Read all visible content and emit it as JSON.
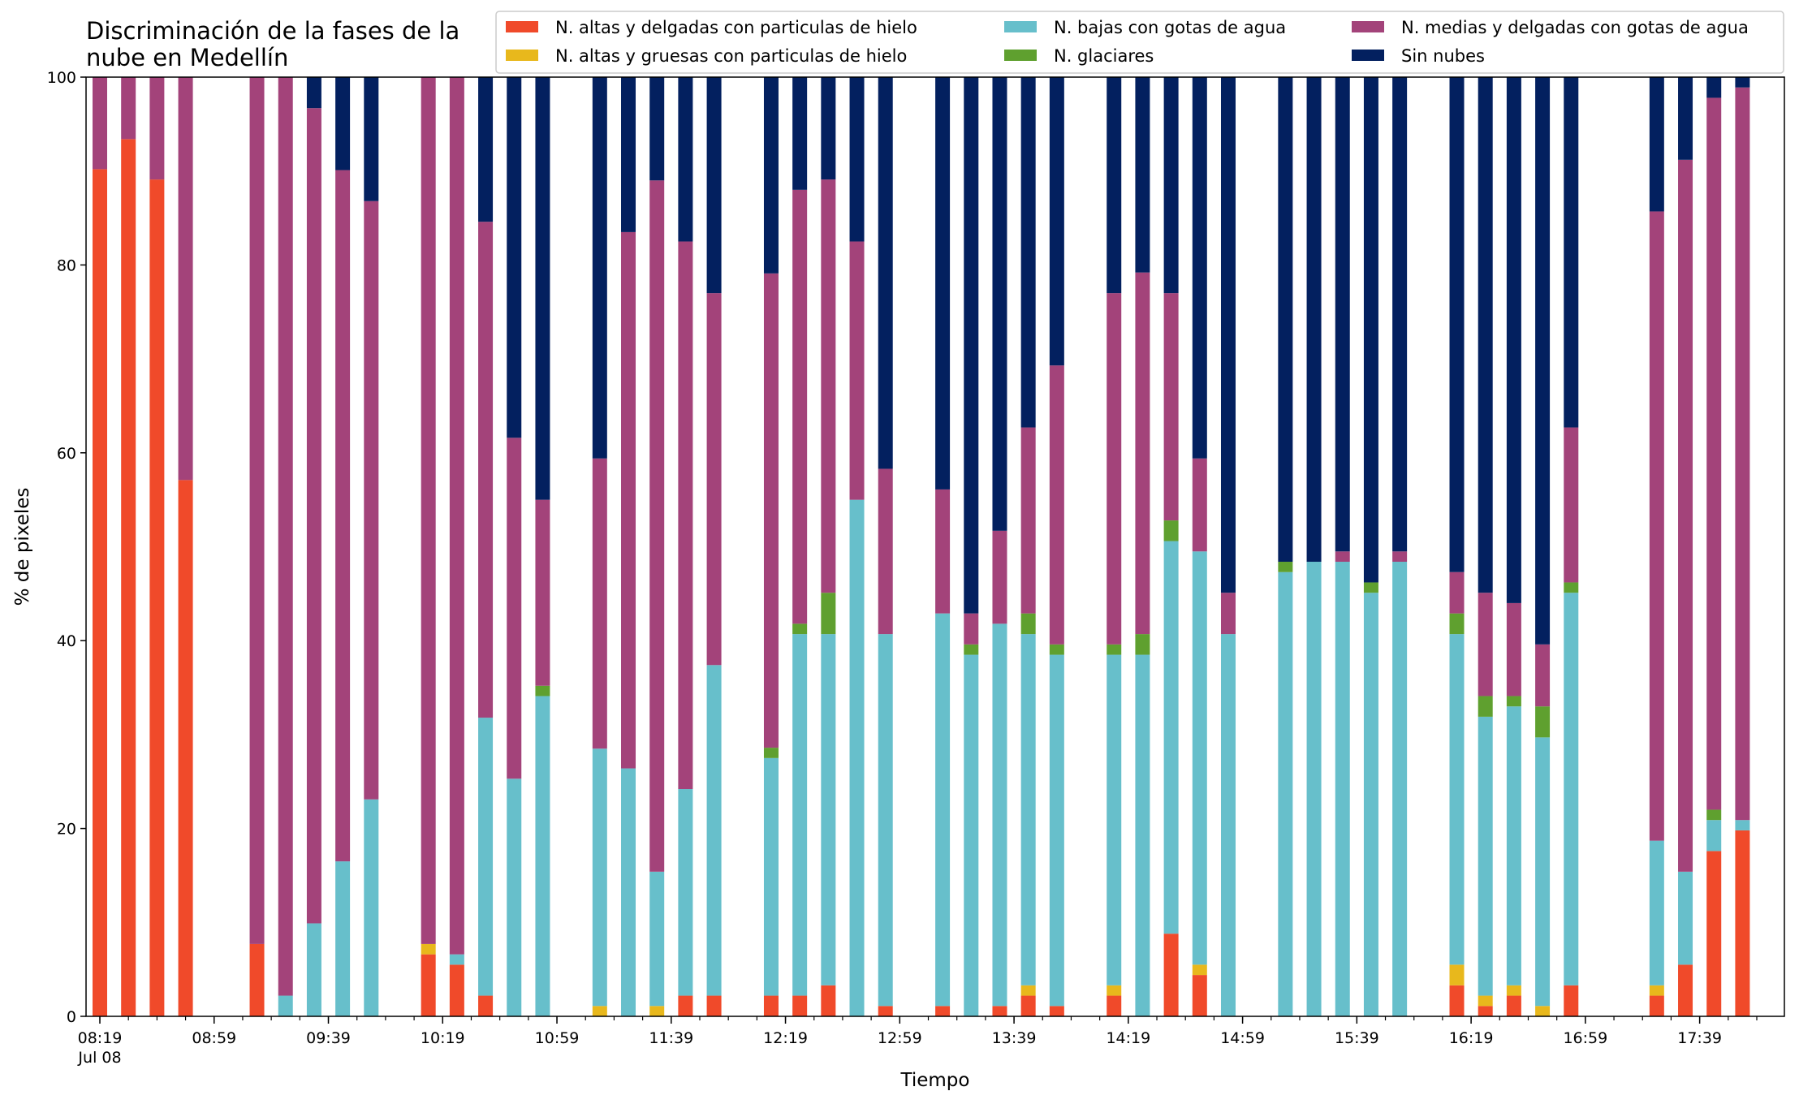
{
  "chart_data": {
    "type": "bar",
    "stacked": true,
    "title_lines": [
      "Discriminación de la fases de la",
      "nube en Medellín"
    ],
    "xlabel": "Tiempo",
    "ylabel": "% de pixeles",
    "ylim": [
      0,
      100
    ],
    "yticks": [
      0,
      20,
      40,
      60,
      80,
      100
    ],
    "xlim_minutes": [
      0,
      580
    ],
    "xtick_labels": [
      {
        "t": 0,
        "label": "08:19",
        "sub": "Jul 08"
      },
      {
        "t": 40,
        "label": "08:59"
      },
      {
        "t": 80,
        "label": "09:39"
      },
      {
        "t": 120,
        "label": "10:19"
      },
      {
        "t": 160,
        "label": "10:59"
      },
      {
        "t": 200,
        "label": "11:39"
      },
      {
        "t": 240,
        "label": "12:19"
      },
      {
        "t": 280,
        "label": "12:59"
      },
      {
        "t": 320,
        "label": "13:39"
      },
      {
        "t": 360,
        "label": "14:19"
      },
      {
        "t": 400,
        "label": "14:59"
      },
      {
        "t": 440,
        "label": "15:39"
      },
      {
        "t": 480,
        "label": "16:19"
      },
      {
        "t": 520,
        "label": "16:59"
      },
      {
        "t": 560,
        "label": "17:39"
      }
    ],
    "legend": {
      "location": "upper right",
      "entries": [
        "N. altas y delgadas con particulas de hielo",
        "N. bajas con gotas de agua",
        "N. medias y delgadas con gotas de agua",
        "N. altas y gruesas con particulas de hielo",
        "N. glaciares",
        "Sin nubes"
      ]
    },
    "series": [
      {
        "name": "N. altas y delgadas con particulas de hielo",
        "color": "#f04a2a"
      },
      {
        "name": "N. altas y gruesas con particulas de hielo",
        "color": "#e8b81c"
      },
      {
        "name": "N. bajas con gotas de agua",
        "color": "#67bfcb"
      },
      {
        "name": "N. glaciares",
        "color": "#5fa02f"
      },
      {
        "name": "N. medias y delgadas con gotas de agua",
        "color": "#a3437a"
      },
      {
        "name": "Sin nubes",
        "color": "#03205f"
      }
    ],
    "bars": [
      {
        "t": 0,
        "values": [
          90.2,
          0,
          0,
          0,
          9.8,
          0
        ]
      },
      {
        "t": 10,
        "values": [
          93.4,
          0,
          0,
          0,
          6.6,
          0
        ]
      },
      {
        "t": 20,
        "values": [
          89.1,
          0,
          0,
          0,
          10.9,
          0
        ]
      },
      {
        "t": 30,
        "values": [
          57.1,
          0,
          0,
          0,
          42.9,
          0
        ]
      },
      {
        "t": 55,
        "values": [
          7.7,
          0,
          0,
          0,
          92.3,
          0
        ]
      },
      {
        "t": 65,
        "values": [
          0,
          0,
          2.2,
          0,
          97.8,
          0
        ]
      },
      {
        "t": 75,
        "values": [
          0,
          0,
          9.9,
          0,
          86.8,
          3.3
        ]
      },
      {
        "t": 85,
        "values": [
          0,
          0,
          16.5,
          0,
          73.6,
          9.9
        ]
      },
      {
        "t": 95,
        "values": [
          0,
          0,
          23.1,
          0,
          63.7,
          13.2
        ]
      },
      {
        "t": 115,
        "values": [
          6.6,
          1.1,
          0,
          0,
          92.3,
          0
        ]
      },
      {
        "t": 125,
        "values": [
          5.5,
          0,
          1.1,
          0,
          93.4,
          0
        ]
      },
      {
        "t": 135,
        "values": [
          2.2,
          0,
          29.6,
          0,
          52.8,
          15.4
        ]
      },
      {
        "t": 145,
        "values": [
          0,
          0,
          25.3,
          0,
          36.3,
          38.4
        ]
      },
      {
        "t": 155,
        "values": [
          0,
          0,
          34.1,
          1.1,
          19.8,
          45.0
        ]
      },
      {
        "t": 175,
        "values": [
          0,
          1.1,
          27.4,
          0,
          30.9,
          40.6
        ]
      },
      {
        "t": 185,
        "values": [
          0,
          0,
          26.4,
          0,
          57.1,
          16.5
        ]
      },
      {
        "t": 195,
        "values": [
          0,
          1.1,
          14.3,
          0,
          73.6,
          11.0
        ]
      },
      {
        "t": 205,
        "values": [
          2.2,
          0,
          22.0,
          0,
          58.3,
          17.5
        ]
      },
      {
        "t": 215,
        "values": [
          2.2,
          0,
          35.2,
          0,
          39.6,
          23.0
        ]
      },
      {
        "t": 235,
        "values": [
          2.2,
          0,
          25.3,
          1.1,
          50.5,
          20.9
        ]
      },
      {
        "t": 245,
        "values": [
          2.2,
          0,
          38.5,
          1.1,
          46.2,
          12.0
        ]
      },
      {
        "t": 255,
        "values": [
          3.3,
          0,
          37.4,
          4.4,
          44.0,
          10.9
        ]
      },
      {
        "t": 265,
        "values": [
          0,
          0,
          55.0,
          0,
          27.5,
          17.5
        ]
      },
      {
        "t": 275,
        "values": [
          1.1,
          0,
          39.6,
          0,
          17.6,
          41.7
        ]
      },
      {
        "t": 295,
        "values": [
          1.1,
          0,
          41.8,
          0,
          13.2,
          43.9
        ]
      },
      {
        "t": 305,
        "values": [
          0,
          0,
          38.5,
          1.1,
          3.3,
          57.1
        ]
      },
      {
        "t": 315,
        "values": [
          1.1,
          0,
          40.7,
          0,
          9.9,
          48.3
        ]
      },
      {
        "t": 325,
        "values": [
          2.2,
          1.1,
          37.4,
          2.2,
          19.8,
          37.3
        ]
      },
      {
        "t": 335,
        "values": [
          1.1,
          0,
          37.4,
          1.1,
          29.7,
          30.7
        ]
      },
      {
        "t": 355,
        "values": [
          2.2,
          1.1,
          35.2,
          1.1,
          37.4,
          23.0
        ]
      },
      {
        "t": 365,
        "values": [
          0,
          0,
          38.5,
          2.2,
          38.5,
          20.8
        ]
      },
      {
        "t": 375,
        "values": [
          8.8,
          0,
          41.8,
          2.2,
          24.2,
          23.0
        ]
      },
      {
        "t": 385,
        "values": [
          4.4,
          1.1,
          44.0,
          0,
          9.9,
          40.6
        ]
      },
      {
        "t": 395,
        "values": [
          0,
          0,
          40.7,
          0,
          4.4,
          54.9
        ]
      },
      {
        "t": 415,
        "values": [
          0,
          0,
          47.3,
          1.1,
          0,
          51.6
        ]
      },
      {
        "t": 425,
        "values": [
          0,
          0,
          48.4,
          0,
          0,
          51.6
        ]
      },
      {
        "t": 435,
        "values": [
          0,
          0,
          48.4,
          0,
          1.1,
          50.5
        ]
      },
      {
        "t": 445,
        "values": [
          0,
          0,
          45.1,
          1.1,
          0,
          53.8
        ]
      },
      {
        "t": 455,
        "values": [
          0,
          0,
          48.4,
          0,
          1.1,
          50.5
        ]
      },
      {
        "t": 475,
        "values": [
          3.3,
          2.2,
          35.2,
          2.2,
          4.4,
          52.7
        ]
      },
      {
        "t": 485,
        "values": [
          1.1,
          1.1,
          29.7,
          2.2,
          11.0,
          54.9
        ]
      },
      {
        "t": 495,
        "values": [
          2.2,
          1.1,
          29.7,
          1.1,
          9.9,
          56.0
        ]
      },
      {
        "t": 505,
        "values": [
          0,
          1.1,
          28.6,
          3.3,
          6.6,
          60.4
        ]
      },
      {
        "t": 515,
        "values": [
          3.3,
          0,
          41.8,
          1.1,
          16.5,
          37.3
        ]
      },
      {
        "t": 545,
        "values": [
          2.2,
          1.1,
          15.4,
          0,
          67.0,
          14.3
        ]
      },
      {
        "t": 555,
        "values": [
          5.5,
          0,
          9.9,
          0,
          75.8,
          8.8
        ]
      },
      {
        "t": 565,
        "values": [
          17.6,
          0,
          3.3,
          1.1,
          75.8,
          2.2
        ]
      },
      {
        "t": 575,
        "values": [
          19.8,
          0,
          1.1,
          0,
          78.0,
          1.1
        ]
      }
    ]
  }
}
